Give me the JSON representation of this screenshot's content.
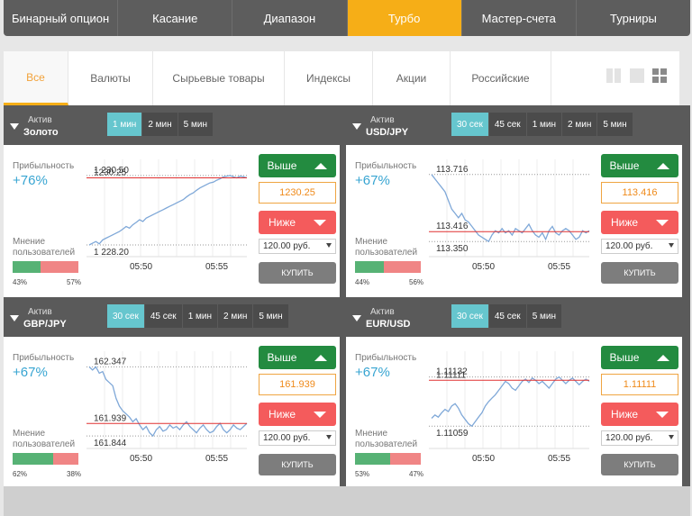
{
  "top_nav": [
    {
      "label": "Бинарный опцион",
      "active": false
    },
    {
      "label": "Касание",
      "active": false
    },
    {
      "label": "Диапазон",
      "active": false
    },
    {
      "label": "Турбо",
      "active": true
    },
    {
      "label": "Мастер-счета",
      "active": false
    },
    {
      "label": "Турниры",
      "active": false
    }
  ],
  "filters": [
    {
      "label": "Все",
      "active": true
    },
    {
      "label": "Валюты",
      "active": false
    },
    {
      "label": "Сырьевые товары",
      "active": false
    },
    {
      "label": "Индексы",
      "active": false
    },
    {
      "label": "Акции",
      "active": false
    },
    {
      "label": "Российские",
      "active": false
    }
  ],
  "view_icons": [
    "view-two-columns-icon",
    "view-single-icon",
    "view-grid-icon"
  ],
  "colors": {
    "accent_orange": "#f6ae17",
    "timeframe_active": "#66c6ce",
    "profit_blue": "#38a5d2",
    "up_green": "#238b40",
    "down_red": "#f45b5c",
    "sentiment_green": "#57b275",
    "sentiment_red": "#f08585",
    "chart_line": "#7fa8d8",
    "strike_line": "#e03030"
  },
  "panels": [
    {
      "asset_caption": "Актив",
      "asset": "Золото",
      "timeframes": [
        {
          "label": "1 мин",
          "active": true
        },
        {
          "label": "2 мин",
          "active": false
        },
        {
          "label": "5 мин",
          "active": false
        }
      ],
      "profit_caption": "Прибыльность",
      "profit": "+76%",
      "opinion_caption_1": "Мнение",
      "opinion_caption_2": "пользователей",
      "bullish_pct": "43%",
      "bearish_pct": "57%",
      "bullish_share": 0.43,
      "up_label": "Выше",
      "down_label": "Ниже",
      "rate": "1230.25",
      "amount": "120.00 руб.",
      "buy_label": "КУПИТЬ",
      "chart_data": {
        "type": "line",
        "y_high_label": "1 230.50",
        "y_strike_label": "1230.25",
        "y_low_label": "1 228.20",
        "x_labels": [
          "05:50",
          "05:55"
        ],
        "ylim": [
          1227.9,
          1230.8
        ],
        "strike": 1230.25,
        "values": [
          1228.25,
          1228.3,
          1228.35,
          1228.28,
          1228.4,
          1228.45,
          1228.5,
          1228.55,
          1228.6,
          1228.65,
          1228.72,
          1228.8,
          1228.75,
          1228.85,
          1228.92,
          1229.0,
          1228.95,
          1229.05,
          1229.1,
          1229.15,
          1229.2,
          1229.25,
          1229.3,
          1229.35,
          1229.4,
          1229.45,
          1229.5,
          1229.55,
          1229.6,
          1229.68,
          1229.75,
          1229.8,
          1229.88,
          1229.95,
          1230.0,
          1230.05,
          1230.1,
          1230.12,
          1230.18,
          1230.22,
          1230.28,
          1230.3,
          1230.32,
          1230.28,
          1230.25,
          1230.3,
          1230.28,
          1230.25
        ]
      }
    },
    {
      "asset_caption": "Актив",
      "asset": "USD/JPY",
      "timeframes": [
        {
          "label": "30 сек",
          "active": true
        },
        {
          "label": "45 сек",
          "active": false
        },
        {
          "label": "1 мин",
          "active": false
        },
        {
          "label": "2 мин",
          "active": false
        },
        {
          "label": "5 мин",
          "active": false
        }
      ],
      "profit_caption": "Прибыльность",
      "profit": "+67%",
      "opinion_caption_1": "Мнение",
      "opinion_caption_2": "пользователей",
      "bullish_pct": "44%",
      "bearish_pct": "56%",
      "bullish_share": 0.44,
      "up_label": "Выше",
      "down_label": "Ниже",
      "rate": "113.416",
      "amount": "120.00 руб.",
      "buy_label": "КУПИТЬ",
      "chart_data": {
        "type": "line",
        "y_high_label": "113.716",
        "y_strike_label": "113.416",
        "y_low_label": "113.350",
        "x_labels": [
          "05:50",
          "05:55"
        ],
        "ylim": [
          113.3,
          113.75
        ],
        "strike": 113.416,
        "values": [
          113.68,
          113.66,
          113.64,
          113.62,
          113.6,
          113.56,
          113.52,
          113.5,
          113.48,
          113.5,
          113.47,
          113.46,
          113.44,
          113.42,
          113.4,
          113.39,
          113.38,
          113.37,
          113.4,
          113.42,
          113.41,
          113.43,
          113.41,
          113.42,
          113.4,
          113.43,
          113.42,
          113.41,
          113.43,
          113.45,
          113.42,
          113.4,
          113.39,
          113.41,
          113.38,
          113.42,
          113.44,
          113.41,
          113.4,
          113.42,
          113.43,
          113.42,
          113.4,
          113.38,
          113.39,
          113.42,
          113.41,
          113.42
        ]
      }
    },
    {
      "asset_caption": "Актив",
      "asset": "GBP/JPY",
      "timeframes": [
        {
          "label": "30 сек",
          "active": true
        },
        {
          "label": "45 сек",
          "active": false
        },
        {
          "label": "1 мин",
          "active": false
        },
        {
          "label": "2 мин",
          "active": false
        },
        {
          "label": "5 мин",
          "active": false
        }
      ],
      "profit_caption": "Прибыльность",
      "profit": "+67%",
      "opinion_caption_1": "Мнение",
      "opinion_caption_2": "пользователей",
      "bullish_pct": "62%",
      "bearish_pct": "38%",
      "bullish_share": 0.62,
      "up_label": "Выше",
      "down_label": "Ниже",
      "rate": "161.939",
      "amount": "120.00 руб.",
      "buy_label": "КУПИТЬ",
      "chart_data": {
        "type": "line",
        "y_high_label": "162.347",
        "y_strike_label": "161.939",
        "y_low_label": "161.844",
        "x_labels": [
          "05:50",
          "05:55"
        ],
        "ylim": [
          161.78,
          162.4
        ],
        "strike": 161.939,
        "values": [
          162.3,
          162.28,
          162.3,
          162.26,
          162.27,
          162.22,
          162.2,
          162.18,
          162.1,
          162.05,
          162.02,
          162.0,
          161.98,
          161.95,
          161.97,
          161.93,
          161.9,
          161.92,
          161.88,
          161.86,
          161.9,
          161.92,
          161.89,
          161.9,
          161.93,
          161.91,
          161.92,
          161.9,
          161.93,
          161.95,
          161.92,
          161.9,
          161.88,
          161.91,
          161.93,
          161.9,
          161.88,
          161.89,
          161.92,
          161.94,
          161.9,
          161.88,
          161.9,
          161.93,
          161.91,
          161.9,
          161.92,
          161.94
        ]
      }
    },
    {
      "asset_caption": "Актив",
      "asset": "EUR/USD",
      "timeframes": [
        {
          "label": "30 сек",
          "active": true
        },
        {
          "label": "45 сек",
          "active": false
        },
        {
          "label": "5 мин",
          "active": false
        }
      ],
      "profit_caption": "Прибыльность",
      "profit": "+67%",
      "opinion_caption_1": "Мнение",
      "opinion_caption_2": "пользователей",
      "bullish_pct": "53%",
      "bearish_pct": "47%",
      "bullish_share": 0.53,
      "up_label": "Выше",
      "down_label": "Ниже",
      "rate": "1.11111",
      "amount": "120.00 руб.",
      "buy_label": "КУПИТЬ",
      "chart_data": {
        "type": "line",
        "y_high_label": "1.11132",
        "y_strike_label": "1.11111",
        "y_low_label": "1.11059",
        "x_labels": [
          "05:50",
          "05:55"
        ],
        "ylim": [
          1.1105,
          1.11137
        ],
        "strike": 1.11111,
        "values": [
          1.11077,
          1.1108,
          1.11078,
          1.11082,
          1.11085,
          1.11083,
          1.11088,
          1.1109,
          1.11086,
          1.1108,
          1.11076,
          1.11072,
          1.1107,
          1.11074,
          1.11078,
          1.11082,
          1.11088,
          1.11092,
          1.11095,
          1.11098,
          1.11102,
          1.11106,
          1.1111,
          1.11108,
          1.11104,
          1.11102,
          1.11106,
          1.1111,
          1.11112,
          1.11109,
          1.11113,
          1.11111,
          1.11108,
          1.1111,
          1.11107,
          1.11104,
          1.11108,
          1.11112,
          1.11114,
          1.11111,
          1.11108,
          1.11111,
          1.11113,
          1.1111,
          1.11107,
          1.1111,
          1.11112,
          1.1111
        ]
      }
    }
  ]
}
